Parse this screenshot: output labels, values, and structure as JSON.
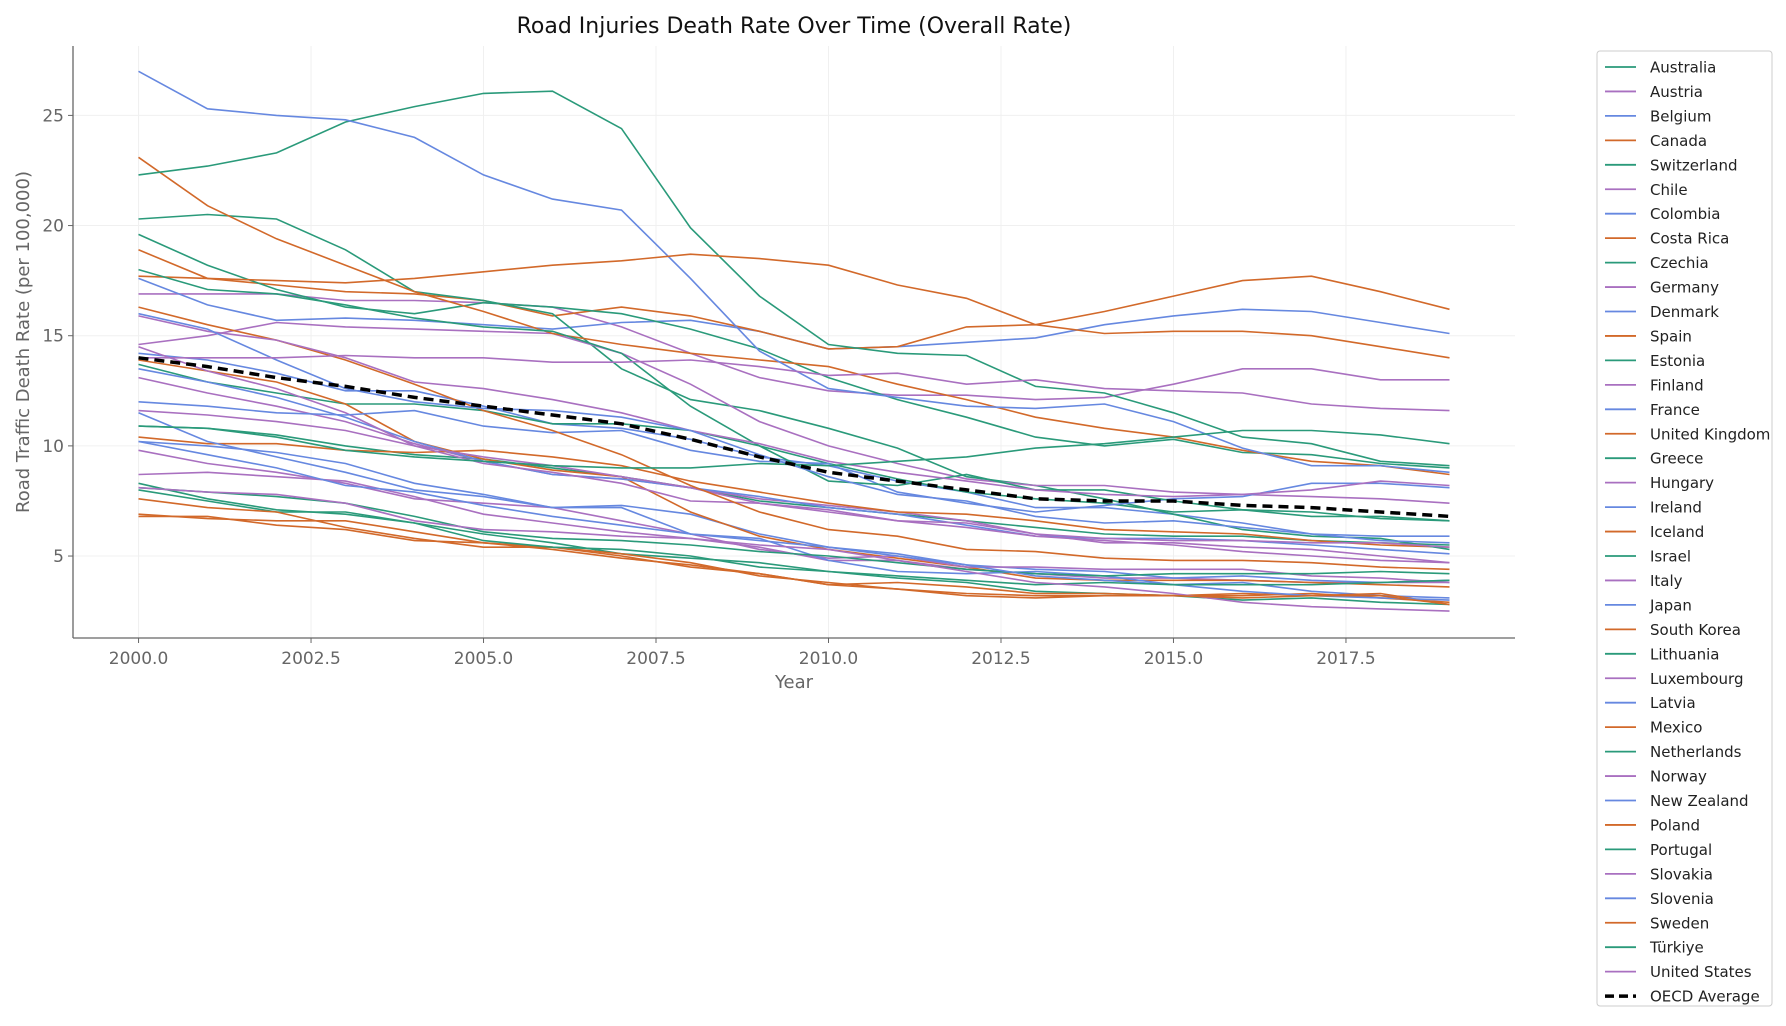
{
  "chart_data": {
    "type": "line",
    "title": "Road Injuries Death Rate Over Time (Overall Rate)",
    "xlabel": "Year",
    "ylabel": "Road Traffic Death Rate (per 100,000)",
    "xlim": [
      1999.05,
      2019.95
    ],
    "ylim": [
      1.28,
      28.15
    ],
    "x_ticks": [
      2000.0,
      2002.5,
      2005.0,
      2007.5,
      2010.0,
      2012.5,
      2015.0,
      2017.5
    ],
    "x_tick_labels": [
      "2000.0",
      "2002.5",
      "2005.0",
      "2007.5",
      "2010.0",
      "2012.5",
      "2015.0",
      "2017.5"
    ],
    "y_ticks": [
      5,
      10,
      15,
      20,
      25
    ],
    "y_tick_labels": [
      "5",
      "10",
      "15",
      "20",
      "25"
    ],
    "grid": true,
    "legend_placement": "outside-right",
    "palette": [
      "#2a9a7a",
      "#a970c0",
      "#6688e0",
      "#d2692a"
    ],
    "average_color": "#000000",
    "x": [
      2000,
      2001,
      2002,
      2003,
      2004,
      2005,
      2006,
      2007,
      2008,
      2009,
      2010,
      2011,
      2012,
      2013,
      2014,
      2015,
      2016,
      2017,
      2018,
      2019
    ],
    "series": [
      {
        "name": "Australia",
        "values": [
          10.9,
          10.8,
          10.5,
          10.0,
          9.6,
          9.4,
          9.0,
          8.6,
          8.1,
          7.5,
          7.2,
          6.9,
          6.6,
          6.3,
          6.0,
          5.9,
          5.9,
          5.7,
          5.6,
          5.5
        ]
      },
      {
        "name": "Austria",
        "values": [
          13.1,
          12.4,
          11.8,
          11.1,
          10.1,
          9.3,
          8.7,
          8.5,
          8.1,
          7.6,
          7.3,
          7.0,
          6.6,
          6.0,
          5.6,
          5.6,
          5.4,
          5.3,
          5.0,
          4.7
        ]
      },
      {
        "name": "Belgium",
        "values": [
          14.2,
          13.9,
          13.3,
          12.5,
          12.5,
          11.8,
          11.0,
          10.8,
          10.3,
          9.5,
          9.1,
          8.4,
          7.9,
          7.2,
          7.2,
          6.9,
          6.5,
          6.0,
          5.9,
          5.9
        ]
      },
      {
        "name": "Canada",
        "values": [
          10.4,
          10.1,
          10.1,
          9.8,
          9.7,
          9.8,
          9.5,
          9.1,
          8.4,
          7.9,
          7.4,
          7.0,
          6.9,
          6.6,
          6.2,
          6.1,
          6.0,
          5.7,
          5.5,
          5.4
        ]
      },
      {
        "name": "Switzerland",
        "values": [
          8.0,
          7.5,
          7.0,
          7.0,
          6.5,
          6.0,
          5.6,
          5.1,
          4.9,
          4.7,
          4.3,
          4.0,
          3.8,
          3.4,
          3.3,
          3.2,
          3.0,
          3.1,
          2.9,
          2.8
        ]
      },
      {
        "name": "Chile",
        "values": [
          16.9,
          16.9,
          16.9,
          16.6,
          16.6,
          16.5,
          16.3,
          15.4,
          14.2,
          13.1,
          12.5,
          12.3,
          12.3,
          12.1,
          12.2,
          12.8,
          13.5,
          13.5,
          13.0,
          13.0
        ]
      },
      {
        "name": "Colombia",
        "values": [
          17.6,
          16.4,
          15.7,
          15.8,
          15.7,
          15.5,
          15.3,
          15.6,
          15.7,
          15.2,
          14.4,
          14.5,
          14.7,
          14.9,
          15.5,
          15.9,
          16.2,
          16.1,
          15.6,
          15.1
        ]
      },
      {
        "name": "Costa Rica",
        "values": [
          17.7,
          17.6,
          17.3,
          17.0,
          16.9,
          16.6,
          15.9,
          16.3,
          15.9,
          15.2,
          14.4,
          14.5,
          15.4,
          15.5,
          15.1,
          15.2,
          15.2,
          15.0,
          14.5,
          14.0
        ]
      },
      {
        "name": "Czechia",
        "values": [
          13.7,
          12.9,
          12.4,
          11.9,
          11.9,
          11.6,
          11.0,
          11.0,
          10.7,
          10.0,
          9.2,
          8.5,
          7.9,
          7.6,
          7.4,
          7.0,
          7.1,
          7.0,
          6.7,
          6.6
        ]
      },
      {
        "name": "Germany",
        "values": [
          8.7,
          8.8,
          8.6,
          8.4,
          7.7,
          6.9,
          6.5,
          6.1,
          5.8,
          5.4,
          4.8,
          4.8,
          4.4,
          4.2,
          4.0,
          4.0,
          3.9,
          3.8,
          3.8,
          3.8
        ]
      },
      {
        "name": "Denmark",
        "values": [
          10.2,
          10.0,
          9.7,
          9.2,
          8.3,
          7.8,
          7.2,
          7.3,
          6.9,
          6.0,
          5.4,
          5.1,
          4.6,
          4.4,
          4.3,
          4.0,
          4.1,
          3.9,
          3.8,
          3.9
        ]
      },
      {
        "name": "Spain",
        "values": [
          13.9,
          13.4,
          12.9,
          11.9,
          10.2,
          9.4,
          8.9,
          8.6,
          7.0,
          5.9,
          5.3,
          4.9,
          4.5,
          4.0,
          3.9,
          3.9,
          3.9,
          3.8,
          3.7,
          3.6
        ]
      },
      {
        "name": "Estonia",
        "values": [
          20.3,
          20.5,
          20.3,
          18.9,
          17.0,
          16.6,
          16.0,
          13.5,
          12.1,
          11.6,
          10.8,
          9.9,
          8.6,
          8.2,
          7.6,
          6.9,
          6.2,
          5.9,
          5.8,
          5.3
        ]
      },
      {
        "name": "Finland",
        "values": [
          9.8,
          9.2,
          8.8,
          8.3,
          7.6,
          7.4,
          7.2,
          6.6,
          6.0,
          5.3,
          4.9,
          5.0,
          4.5,
          4.5,
          4.4,
          4.4,
          4.4,
          4.1,
          4.0,
          3.8
        ]
      },
      {
        "name": "France",
        "values": [
          13.5,
          12.9,
          12.2,
          11.3,
          10.2,
          9.3,
          8.7,
          8.5,
          8.1,
          7.7,
          7.2,
          6.9,
          6.4,
          5.9,
          5.8,
          5.8,
          5.7,
          5.5,
          5.3,
          5.1
        ]
      },
      {
        "name": "United Kingdom",
        "values": [
          6.9,
          6.7,
          6.6,
          6.6,
          6.1,
          5.6,
          5.4,
          5.0,
          4.5,
          4.2,
          3.7,
          3.5,
          3.3,
          3.2,
          3.2,
          3.2,
          3.2,
          3.3,
          3.1,
          2.9
        ]
      },
      {
        "name": "Greece",
        "values": [
          19.6,
          18.2,
          17.1,
          16.3,
          16.0,
          16.5,
          16.3,
          16.0,
          15.3,
          14.4,
          13.1,
          12.1,
          11.3,
          10.4,
          10.0,
          10.3,
          9.7,
          9.6,
          9.2,
          9.0
        ]
      },
      {
        "name": "Hungary",
        "values": [
          14.6,
          15.0,
          15.6,
          15.4,
          15.3,
          15.2,
          15.1,
          14.2,
          12.8,
          11.1,
          10.0,
          9.2,
          8.5,
          8.2,
          8.2,
          7.9,
          7.8,
          7.7,
          7.6,
          7.4
        ]
      },
      {
        "name": "Ireland",
        "values": [
          11.5,
          10.2,
          9.5,
          8.8,
          8.0,
          7.7,
          7.2,
          7.2,
          6.0,
          5.8,
          4.8,
          4.3,
          4.2,
          4.3,
          4.1,
          3.7,
          3.8,
          3.4,
          3.2,
          3.1
        ]
      },
      {
        "name": "Iceland",
        "values": [
          7.6,
          7.2,
          7.0,
          6.3,
          5.8,
          5.4,
          5.4,
          5.1,
          4.7,
          4.1,
          3.8,
          3.5,
          3.2,
          3.1,
          3.2,
          3.2,
          3.3,
          3.2,
          3.3,
          2.8
        ]
      },
      {
        "name": "Israel",
        "values": [
          8.1,
          7.9,
          7.7,
          7.4,
          6.8,
          6.1,
          5.8,
          5.7,
          5.5,
          5.2,
          5.0,
          4.7,
          4.4,
          4.2,
          4.1,
          4.2,
          4.2,
          4.2,
          4.3,
          4.2
        ]
      },
      {
        "name": "Italy",
        "values": [
          11.6,
          11.4,
          11.1,
          10.7,
          10.0,
          9.5,
          9.1,
          8.6,
          8.1,
          7.4,
          7.0,
          6.6,
          6.5,
          6.0,
          5.8,
          5.7,
          5.7,
          5.6,
          5.6,
          5.4
        ]
      },
      {
        "name": "Japan",
        "values": [
          10.2,
          9.6,
          9.0,
          8.2,
          7.9,
          7.3,
          6.8,
          6.4,
          6.0,
          5.7,
          5.4,
          5.0,
          4.6,
          4.1,
          3.9,
          3.7,
          3.4,
          3.2,
          3.1,
          3.0
        ]
      },
      {
        "name": "South Korea",
        "values": [
          23.1,
          20.9,
          19.4,
          18.2,
          17.0,
          16.1,
          15.1,
          14.6,
          14.2,
          13.9,
          13.6,
          12.8,
          12.1,
          11.3,
          10.8,
          10.4,
          9.8,
          9.3,
          9.1,
          8.7
        ]
      },
      {
        "name": "Lithuania",
        "values": [
          22.3,
          22.7,
          23.3,
          24.7,
          25.4,
          26.0,
          26.1,
          24.4,
          19.9,
          16.8,
          14.6,
          14.2,
          14.1,
          12.7,
          12.4,
          11.5,
          10.4,
          10.1,
          9.3,
          9.1
        ]
      },
      {
        "name": "Luxembourg",
        "values": [
          14.5,
          13.4,
          12.6,
          11.5,
          10.0,
          9.2,
          8.8,
          8.3,
          7.5,
          7.4,
          7.1,
          6.6,
          6.3,
          5.9,
          5.7,
          5.5,
          5.2,
          5.0,
          4.8,
          4.7
        ]
      },
      {
        "name": "Latvia",
        "values": [
          27.0,
          25.3,
          25.0,
          24.8,
          24.0,
          22.3,
          21.2,
          20.7,
          17.6,
          14.3,
          12.6,
          12.2,
          11.8,
          11.7,
          11.9,
          11.1,
          9.9,
          9.1,
          9.1,
          8.8
        ]
      },
      {
        "name": "Mexico",
        "values": [
          18.9,
          17.6,
          17.5,
          17.4,
          17.6,
          17.9,
          18.2,
          18.4,
          18.7,
          18.5,
          18.2,
          17.3,
          16.7,
          15.5,
          16.1,
          16.8,
          17.5,
          17.7,
          17.0,
          16.2
        ]
      },
      {
        "name": "Netherlands",
        "values": [
          8.3,
          7.6,
          7.1,
          6.9,
          6.5,
          5.7,
          5.4,
          5.3,
          5.0,
          4.5,
          4.3,
          4.1,
          3.9,
          3.7,
          3.8,
          3.7,
          3.7,
          3.7,
          3.8,
          3.9
        ]
      },
      {
        "name": "Norway",
        "values": [
          8.1,
          7.9,
          7.8,
          7.4,
          6.6,
          6.2,
          6.1,
          5.9,
          5.8,
          5.5,
          5.3,
          4.8,
          4.3,
          3.8,
          3.6,
          3.3,
          2.9,
          2.7,
          2.6,
          2.5
        ]
      },
      {
        "name": "New Zealand",
        "values": [
          12.0,
          11.8,
          11.5,
          11.4,
          11.6,
          10.9,
          10.6,
          10.7,
          9.8,
          9.3,
          9.2,
          7.9,
          7.4,
          7.0,
          7.3,
          7.6,
          7.7,
          8.3,
          8.3,
          8.1
        ]
      },
      {
        "name": "Poland",
        "values": [
          16.3,
          15.5,
          14.8,
          13.9,
          12.8,
          11.6,
          10.7,
          9.6,
          8.2,
          7.0,
          6.2,
          5.9,
          5.3,
          5.2,
          4.9,
          4.8,
          4.8,
          4.7,
          4.5,
          4.4
        ]
      },
      {
        "name": "Portugal",
        "values": [
          18.0,
          17.1,
          16.9,
          16.4,
          15.8,
          15.4,
          15.2,
          14.2,
          11.8,
          10.0,
          8.4,
          8.2,
          8.7,
          8.0,
          8.0,
          7.5,
          7.1,
          6.8,
          6.8,
          6.6
        ]
      },
      {
        "name": "Slovakia",
        "values": [
          15.9,
          15.2,
          14.8,
          14.0,
          12.9,
          12.6,
          12.1,
          11.5,
          10.7,
          10.1,
          9.3,
          8.8,
          8.4,
          8.0,
          7.8,
          7.7,
          7.8,
          8.0,
          8.4,
          8.2
        ]
      },
      {
        "name": "Slovenia",
        "values": [
          16.0,
          15.3,
          13.9,
          12.6,
          12.0,
          11.7,
          11.6,
          11.3,
          10.7,
          9.6,
          8.6,
          7.8,
          7.5,
          6.8,
          6.5,
          6.6,
          6.3,
          6.0,
          5.7,
          5.6
        ]
      },
      {
        "name": "Sweden",
        "values": [
          6.8,
          6.8,
          6.4,
          6.2,
          5.7,
          5.6,
          5.3,
          4.9,
          4.6,
          4.2,
          3.7,
          3.8,
          3.6,
          3.3,
          3.3,
          3.2,
          3.1,
          3.2,
          3.2,
          2.8
        ]
      },
      {
        "name": "Türkiye",
        "values": [
          10.9,
          10.8,
          10.4,
          9.8,
          9.5,
          9.3,
          9.1,
          9.0,
          9.0,
          9.2,
          9.1,
          9.3,
          9.5,
          9.9,
          10.1,
          10.4,
          10.7,
          10.7,
          10.5,
          10.1
        ]
      },
      {
        "name": "United States",
        "values": [
          14.0,
          14.0,
          14.0,
          14.1,
          14.0,
          14.0,
          13.8,
          13.8,
          13.9,
          13.6,
          13.2,
          13.3,
          12.8,
          13.0,
          12.6,
          12.5,
          12.4,
          11.9,
          11.7,
          11.6
        ]
      }
    ],
    "average": {
      "name": "OECD Average",
      "values": [
        14.0,
        13.6,
        13.1,
        12.7,
        12.2,
        11.8,
        11.4,
        11.0,
        10.3,
        9.5,
        8.8,
        8.4,
        8.0,
        7.6,
        7.5,
        7.5,
        7.3,
        7.2,
        7.0,
        6.8
      ]
    }
  }
}
